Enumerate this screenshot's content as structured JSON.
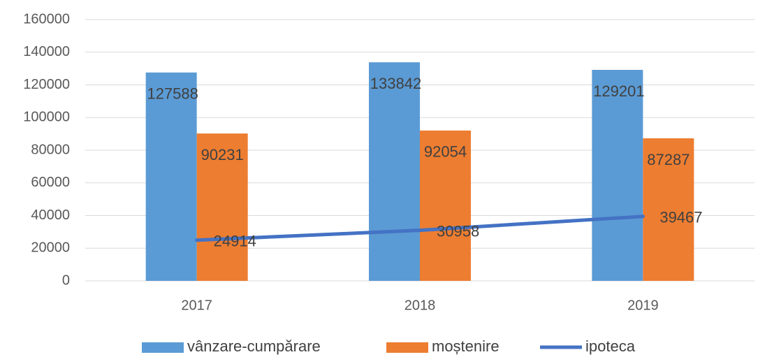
{
  "chart_data": {
    "type": "bar",
    "categories": [
      "2017",
      "2018",
      "2019"
    ],
    "series": [
      {
        "name": "vânzare-cumpărare",
        "color": "#5b9bd5",
        "values": [
          127588,
          133842,
          129201
        ]
      },
      {
        "name": "moștenire",
        "color": "#ed7d31",
        "values": [
          90231,
          92054,
          87287
        ]
      },
      {
        "name": "ipoteca",
        "color": "#4472c4",
        "type": "line",
        "values": [
          24914,
          30958,
          39467
        ]
      }
    ],
    "ylim": [
      0,
      160000
    ],
    "yticks": [
      0,
      20000,
      40000,
      60000,
      80000,
      100000,
      120000,
      140000,
      160000
    ],
    "grid": true,
    "legend": "bottom"
  }
}
